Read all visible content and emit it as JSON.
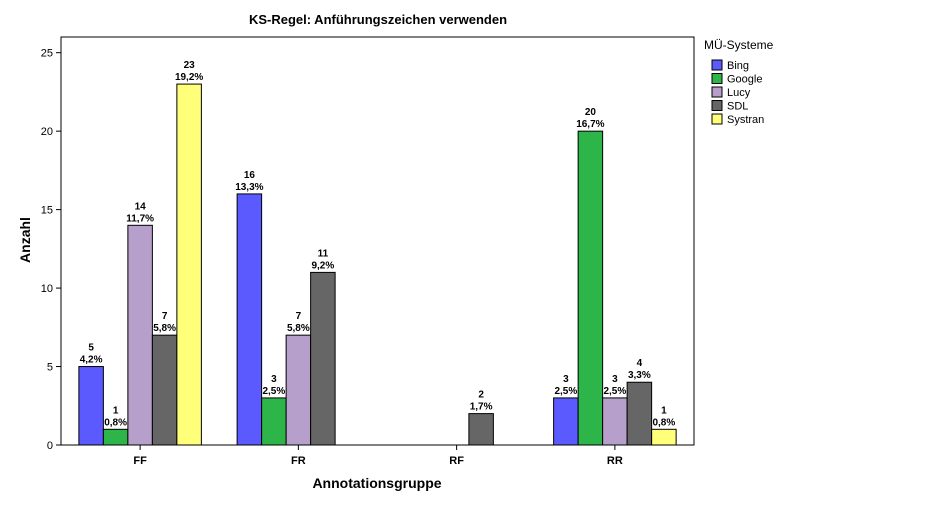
{
  "chart_data": {
    "type": "bar",
    "title": "KS-Regel: Anführungszeichen verwenden",
    "xlabel": "Annotationsgruppe",
    "ylabel": "Anzahl",
    "ylim": [
      0,
      26
    ],
    "yticks": [
      0,
      5,
      10,
      15,
      20,
      25
    ],
    "grid": false,
    "legend_title": "MÜ-Systeme",
    "legend_position": "right",
    "categories": [
      "FF",
      "FR",
      "RF",
      "RR"
    ],
    "series": [
      {
        "name": "Bing",
        "color": "#5a5aff",
        "values": [
          5,
          16,
          null,
          3
        ],
        "labels": [
          "4,2%",
          "13,3%",
          null,
          "2,5%"
        ]
      },
      {
        "name": "Google",
        "color": "#2db54a",
        "values": [
          1,
          3,
          null,
          20
        ],
        "labels": [
          "0,8%",
          "2,5%",
          null,
          "16,7%"
        ]
      },
      {
        "name": "Lucy",
        "color": "#b79fcb",
        "values": [
          14,
          7,
          null,
          3
        ],
        "labels": [
          "11,7%",
          "5,8%",
          null,
          "2,5%"
        ]
      },
      {
        "name": "SDL",
        "color": "#666666",
        "values": [
          7,
          11,
          2,
          4
        ],
        "labels": [
          "5,8%",
          "9,2%",
          "1,7%",
          "3,3%"
        ]
      },
      {
        "name": "Systran",
        "color": "#ffff7a",
        "values": [
          23,
          null,
          null,
          1
        ],
        "labels": [
          "19,2%",
          null,
          null,
          "0,8%"
        ]
      }
    ]
  }
}
